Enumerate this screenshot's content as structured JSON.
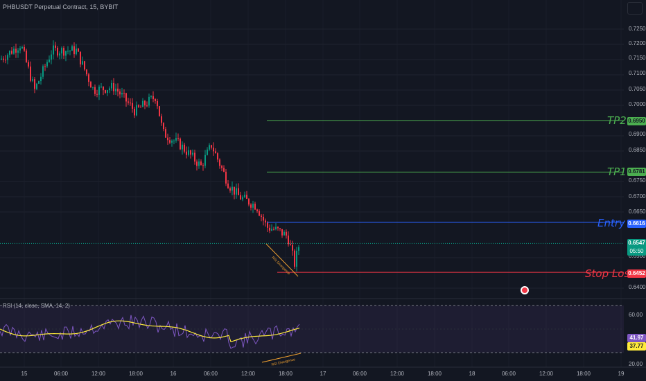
{
  "symbol_title": "PHBUSDT Perpetual Contract, 15, BYBIT",
  "rsi_title": "RSI (14, close, SMA, 14, 2)",
  "price_axis": [
    "0.7250",
    "0.7200",
    "0.7150",
    "0.7100",
    "0.7050",
    "0.7000",
    "0.6900",
    "0.6850",
    "0.6750",
    "0.6700",
    "0.6650",
    "0.6500",
    "0.6400"
  ],
  "rsi_axis": [
    "60.00",
    "20.00"
  ],
  "time_axis": [
    "15",
    "06:00",
    "12:00",
    "18:00",
    "16",
    "06:00",
    "12:00",
    "18:00",
    "17",
    "06:00",
    "12:00",
    "18:00",
    "18",
    "06:00",
    "12:00",
    "18:00",
    "19"
  ],
  "levels": {
    "tp2": {
      "label": "TP2",
      "price": "0.6950",
      "color": "#4caf50"
    },
    "tp1": {
      "label": "TP1",
      "price": "0.6781",
      "color": "#4caf50"
    },
    "entry": {
      "label": "Entry",
      "price": "0.6616",
      "color": "#2962ff"
    },
    "stop_loss": {
      "label": "Stop Loss",
      "price": "0.6452",
      "color": "#f23645"
    }
  },
  "last_price": {
    "price": "0.6547",
    "countdown": "05:50",
    "color": "#089981"
  },
  "rsi_values": {
    "rsi": "41.97",
    "rsi_color": "#7e57c2",
    "sma": "37.77",
    "sma_color": "#ffeb3b"
  },
  "annotations": {
    "price_divergence": "RSI Divergence",
    "rsi_divergence": "RSI Divergence"
  },
  "icons": {
    "corner": "layout-toggle-icon",
    "event": "economic-event-icon"
  },
  "colors": {
    "background": "#131722",
    "up": "#089981",
    "down": "#f23645",
    "divergence": "#f0a030"
  }
}
